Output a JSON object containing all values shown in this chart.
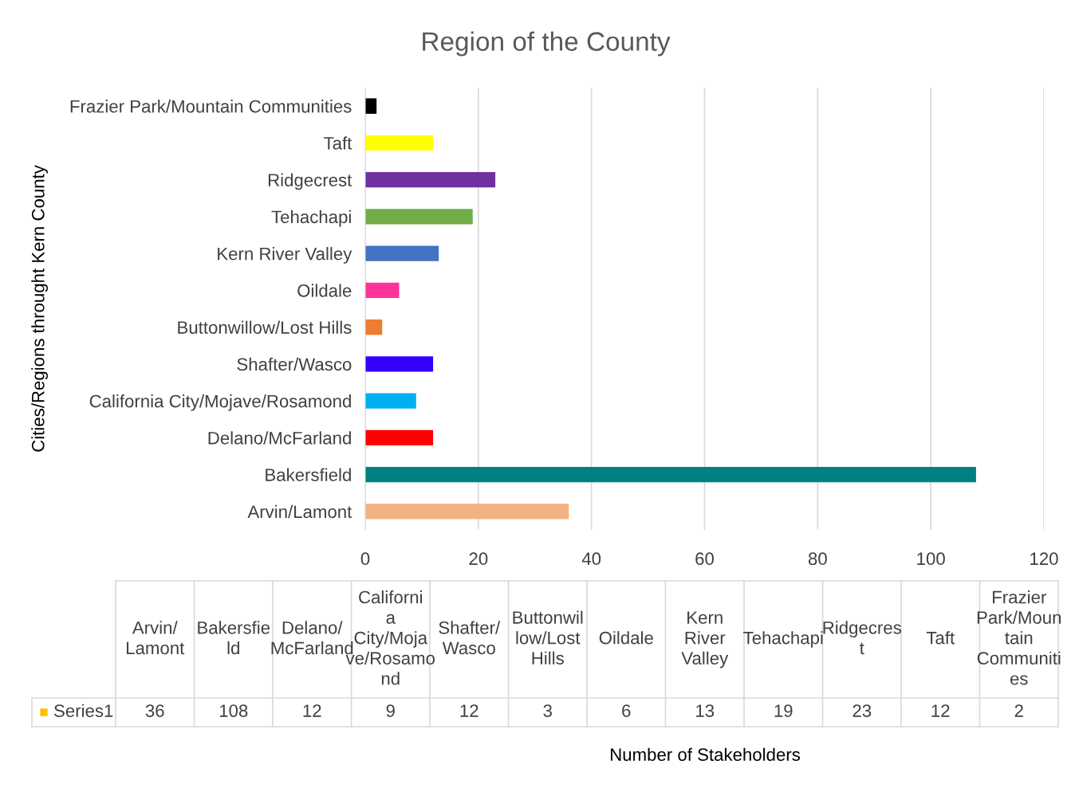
{
  "chart_data": [
    {
      "type": "bar",
      "orientation": "horizontal",
      "title": "Region of the County",
      "ylabel": "Cities/Regions throught Kern County",
      "categories": [
        "Frazier Park/Mountain Communities",
        "Taft",
        "Ridgecrest",
        "Tehachapi",
        "Kern River Valley",
        "Oildale",
        "Buttonwillow/Lost Hills",
        "Shafter/Wasco",
        "California City/Mojave/Rosamond",
        "Delano/McFarland",
        "Bakersfield",
        "Arvin/Lamont"
      ],
      "series": [
        {
          "values": [
            2,
            12,
            23,
            19,
            13,
            6,
            3,
            12,
            9,
            12,
            108,
            36
          ],
          "colors": [
            "#000000",
            "#ffff00",
            "#7030a0",
            "#70ad47",
            "#4472c4",
            "#ff3399",
            "#ed7d31",
            "#3300ff",
            "#00b0f0",
            "#ff0000",
            "#008080",
            "#f4b183"
          ]
        }
      ],
      "xlim": [
        0,
        120
      ],
      "xticks": [
        0,
        20,
        40,
        60,
        80,
        100,
        120
      ],
      "grid": "x"
    },
    {
      "type": "other",
      "categories": [
        "Arvin/Lamont",
        "Bakersfield",
        "Delano/McFarland",
        "California City/Mojave/Rosamond",
        "Shafter/Wasco",
        "Buttonwillow/Lost Hills",
        "Oildale",
        "Kern River Valley",
        "Tehachapi",
        "Ridgecrest",
        "Taft",
        "Frazier Park/Mountain Communities"
      ],
      "series": [
        {
          "name": "Series1",
          "color": "#ffc000",
          "values": [
            36,
            108,
            12,
            9,
            12,
            3,
            6,
            13,
            19,
            23,
            12,
            2
          ]
        }
      ],
      "data_labels": true,
      "annotations": [
        "Number of Stakeholders"
      ]
    }
  ]
}
